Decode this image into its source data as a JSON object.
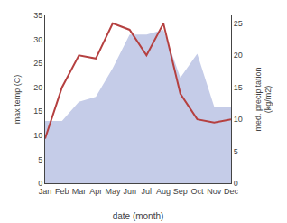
{
  "chart_data": {
    "type": "line",
    "categories": [
      "Jan",
      "Feb",
      "Mar",
      "Apr",
      "May",
      "Jun",
      "Jul",
      "Aug",
      "Sep",
      "Oct",
      "Nov",
      "Dec"
    ],
    "series": [
      {
        "type": "area",
        "color": "#c5cce8",
        "values": [
          13.0,
          13.0,
          17.0,
          18.0,
          24.0,
          31.0,
          31.0,
          32.0,
          22.0,
          27.0,
          16.0,
          16.0
        ]
      },
      {
        "type": "line",
        "color": "#b54040",
        "axis": "y2",
        "values": [
          7.0,
          15.0,
          20.0,
          19.5,
          25.0,
          24.0,
          20.0,
          25.0,
          14.0,
          10.0,
          9.5,
          10.0
        ]
      }
    ],
    "xlabel": "date (month)",
    "ylabel": "max temp (C)",
    "y2label": "med. precipitation\n(kg/m2)",
    "ylim": [
      0,
      35
    ],
    "yticks": [
      0,
      5,
      10,
      15,
      20,
      25,
      30,
      35
    ],
    "y2lim": [
      0,
      26.25
    ],
    "y2ticks": [
      0,
      5,
      10,
      15,
      20,
      25
    ],
    "grid": false
  }
}
